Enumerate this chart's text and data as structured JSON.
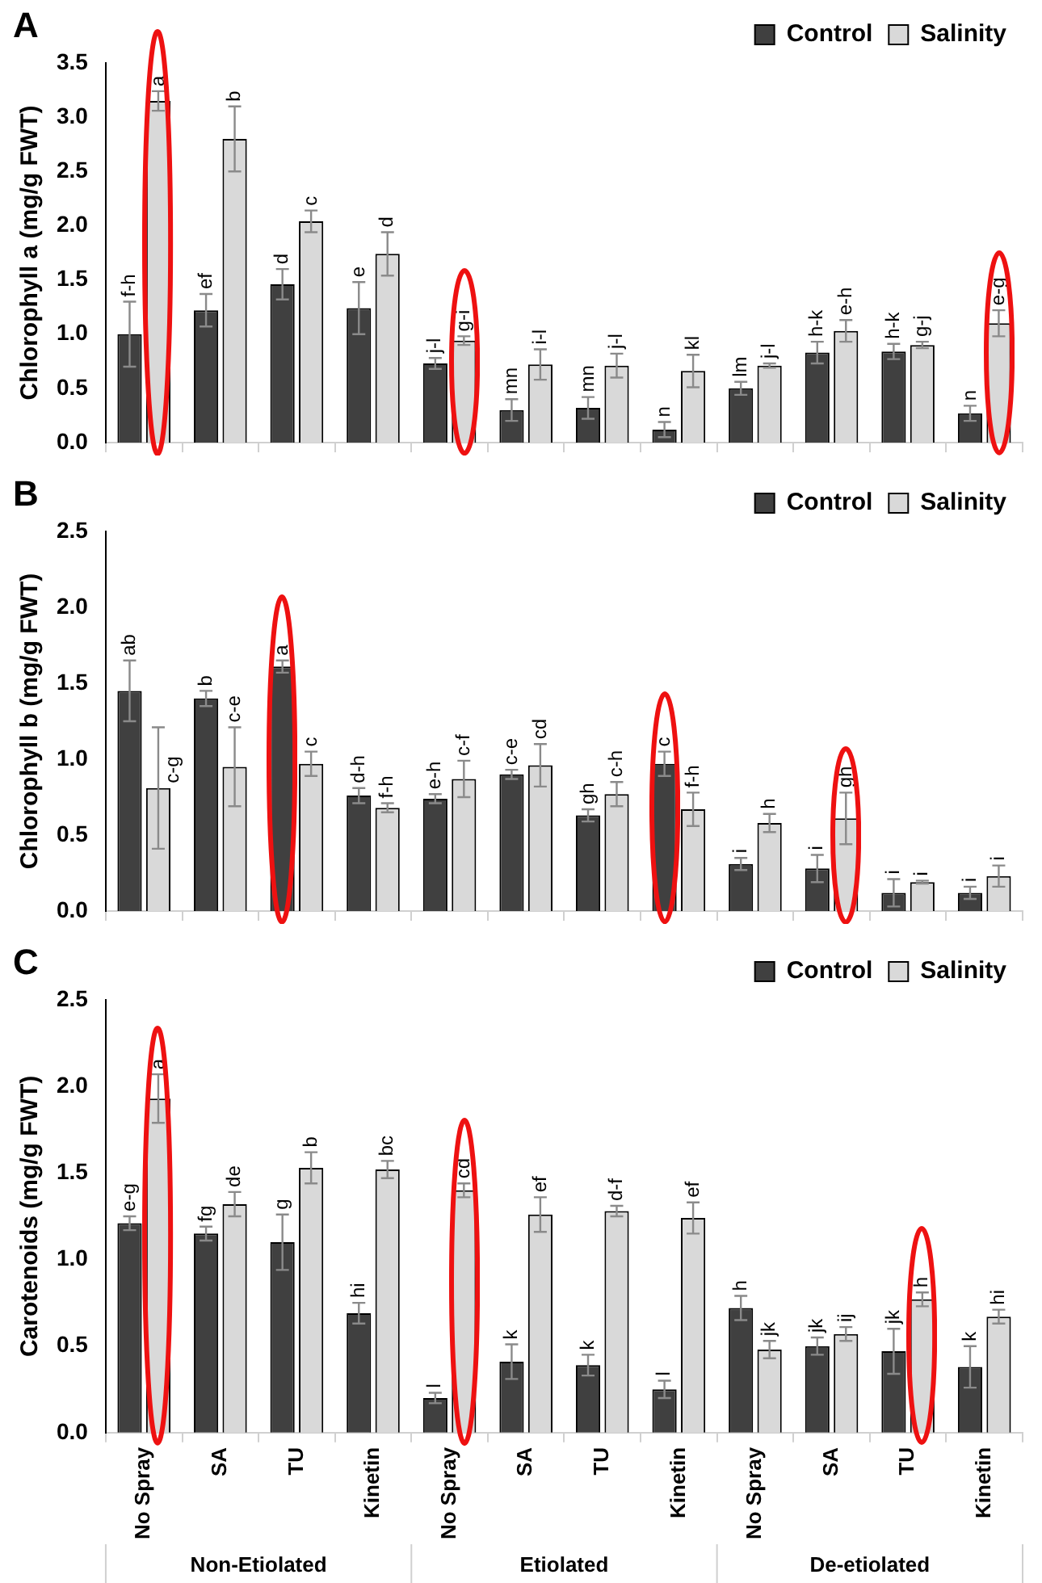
{
  "chart_data": [
    {
      "type": "bar",
      "title": "A",
      "ylabel": "Chlorophyll a (mg/g FWT)",
      "categories": [
        null,
        null,
        null,
        null,
        null,
        null,
        null,
        null,
        null,
        null,
        null,
        null
      ],
      "legend": "top right",
      "ylim": [
        0,
        3.5
      ],
      "yticks": [
        {
          "value": 0,
          "label": "0.0"
        },
        0.5,
        {
          "value": 1,
          "label": "1.0"
        },
        1.5,
        {
          "value": 2,
          "label": "2.0"
        },
        2.5,
        {
          "value": 3,
          "label": "3.0"
        },
        3.5
      ],
      "series": [
        {
          "name": "Control",
          "color": "#404040",
          "values": [
            1.0,
            1.22,
            1.46,
            1.24,
            0.73,
            0.3,
            0.32,
            0.12,
            0.5,
            0.83,
            0.84,
            0.27
          ],
          "errors": [
            0.3,
            0.15,
            0.14,
            0.24,
            0.05,
            0.1,
            0.1,
            0.07,
            0.06,
            0.1,
            0.07,
            0.07
          ],
          "value_labels": [
            "f-h",
            "ef",
            "d",
            "e",
            "j-l",
            "mn",
            "mn",
            "n",
            "lm",
            "h-k",
            "h-k",
            "n"
          ]
        },
        {
          "name": "Salinity",
          "color": "#d9d9d9",
          "values": [
            3.15,
            2.8,
            2.04,
            1.74,
            0.94,
            0.72,
            0.71,
            0.66,
            0.71,
            1.03,
            0.9,
            1.1
          ],
          "errors": [
            0.09,
            0.3,
            0.1,
            0.2,
            0.04,
            0.14,
            0.11,
            0.15,
            0.02,
            0.1,
            0.03,
            0.12
          ],
          "value_labels": [
            "a",
            "b",
            "c",
            "d",
            "g-i",
            "i-l",
            "j-l",
            "kl",
            "j-l",
            "e-h",
            "g-j",
            "e-g"
          ]
        }
      ]
    },
    {
      "type": "bar",
      "title": "B",
      "ylabel": "Chlorophyll b (mg/g FWT)",
      "categories": [
        null,
        null,
        null,
        null,
        null,
        null,
        null,
        null,
        null,
        null,
        null,
        null
      ],
      "legend": "top right",
      "ylim": [
        0,
        2.5
      ],
      "yticks": [
        {
          "value": 0,
          "label": "0.0"
        },
        0.5,
        {
          "value": 1,
          "label": "1.0"
        },
        1.5,
        {
          "value": 2,
          "label": "2.0"
        },
        2.5
      ],
      "series": [
        {
          "name": "Control",
          "color": "#404040",
          "values": [
            1.45,
            1.4,
            1.61,
            0.76,
            0.74,
            0.9,
            0.63,
            0.97,
            0.31,
            0.28,
            0.12,
            0.12
          ],
          "errors": [
            0.2,
            0.05,
            0.04,
            0.05,
            0.03,
            0.03,
            0.04,
            0.08,
            0.04,
            0.09,
            0.09,
            0.04
          ],
          "value_labels": [
            "ab",
            "b",
            "a",
            "d-h",
            "e-h",
            "c-e",
            "gh",
            "c",
            "i",
            "i",
            "i",
            "i"
          ]
        },
        {
          "name": "Salinity",
          "color": "#d9d9d9",
          "values": [
            0.81,
            0.95,
            0.97,
            0.68,
            0.87,
            0.96,
            0.77,
            0.67,
            0.58,
            0.61,
            0.19,
            0.23
          ],
          "errors": [
            0.4,
            0.26,
            0.08,
            0.03,
            0.12,
            0.14,
            0.08,
            0.11,
            0.06,
            0.17,
            0.01,
            0.07
          ],
          "value_labels": [
            "c-g",
            "c-e",
            "c",
            "f-h",
            "c-f",
            "cd",
            "c-h",
            "f-h",
            "h",
            "gh",
            "i",
            "i"
          ]
        }
      ]
    },
    {
      "type": "bar",
      "title": "C",
      "ylabel": "Carotenoids (mg/g FWT)",
      "categories": [
        "No Spray",
        "SA",
        "TU",
        "Kinetin",
        "No Spray",
        "SA",
        "TU",
        "Kinetin",
        "No Spray",
        "SA",
        "TU",
        "Kinetin"
      ],
      "legend": "top right",
      "ylim": [
        0,
        2.5
      ],
      "yticks": [
        {
          "value": 0,
          "label": "0.0"
        },
        0.5,
        {
          "value": 1,
          "label": "1.0"
        },
        1.5,
        {
          "value": 2,
          "label": "2.0"
        },
        2.5
      ],
      "annotations": [
        "Non-Etiolated",
        "Etiolated",
        "De-etiolated"
      ],
      "series": [
        {
          "name": "Control",
          "color": "#404040",
          "values": [
            1.21,
            1.15,
            1.1,
            0.69,
            0.2,
            0.41,
            0.39,
            0.25,
            0.72,
            0.5,
            0.47,
            0.38
          ],
          "errors": [
            0.04,
            0.04,
            0.16,
            0.06,
            0.03,
            0.1,
            0.06,
            0.05,
            0.07,
            0.05,
            0.13,
            0.12
          ],
          "value_labels": [
            "e-g",
            "fg",
            "g",
            "hi",
            "l",
            "k",
            "k",
            "l",
            "h",
            "jk",
            "jk",
            "k"
          ]
        },
        {
          "name": "Salinity",
          "color": "#d9d9d9",
          "values": [
            1.93,
            1.32,
            1.53,
            1.52,
            1.4,
            1.26,
            1.28,
            1.24,
            0.48,
            0.57,
            0.77,
            0.67
          ],
          "errors": [
            0.14,
            0.07,
            0.09,
            0.05,
            0.04,
            0.1,
            0.03,
            0.09,
            0.05,
            0.04,
            0.04,
            0.04
          ],
          "value_labels": [
            "a",
            "de",
            "b",
            "bc",
            "cd",
            "ef",
            "d-f",
            "ef",
            "jk",
            "ij",
            "h",
            "hi"
          ]
        }
      ]
    }
  ]
}
